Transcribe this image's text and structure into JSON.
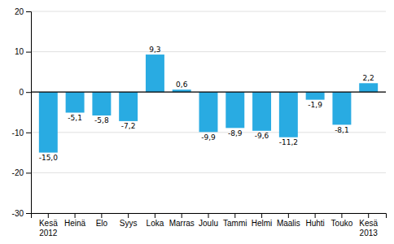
{
  "chart_data": {
    "type": "bar",
    "categories": [
      "Kesä\n2012",
      "Heinä",
      "Elo",
      "Syys",
      "Loka",
      "Marras",
      "Joulu",
      "Tammi",
      "Helmi",
      "Maalis",
      "Huhti",
      "Touko",
      "Kesä\n2013"
    ],
    "values": [
      -15.0,
      -5.1,
      -5.8,
      -7.2,
      9.3,
      0.6,
      -9.9,
      -8.9,
      -9.6,
      -11.2,
      -1.9,
      -8.1,
      2.2
    ],
    "value_labels": [
      "-15,0",
      "-5,1",
      "-5,8",
      "-7,2",
      "9,3",
      "0,6",
      "-9,9",
      "-8,9",
      "-9,6",
      "-11,2",
      "-1,9",
      "-8,1",
      "2,2"
    ],
    "color": "#29ABE2",
    "ylim": [
      -30,
      20
    ],
    "yticks": [
      -30,
      -20,
      -10,
      0,
      10,
      20
    ],
    "grid": true,
    "data_labels": true
  }
}
